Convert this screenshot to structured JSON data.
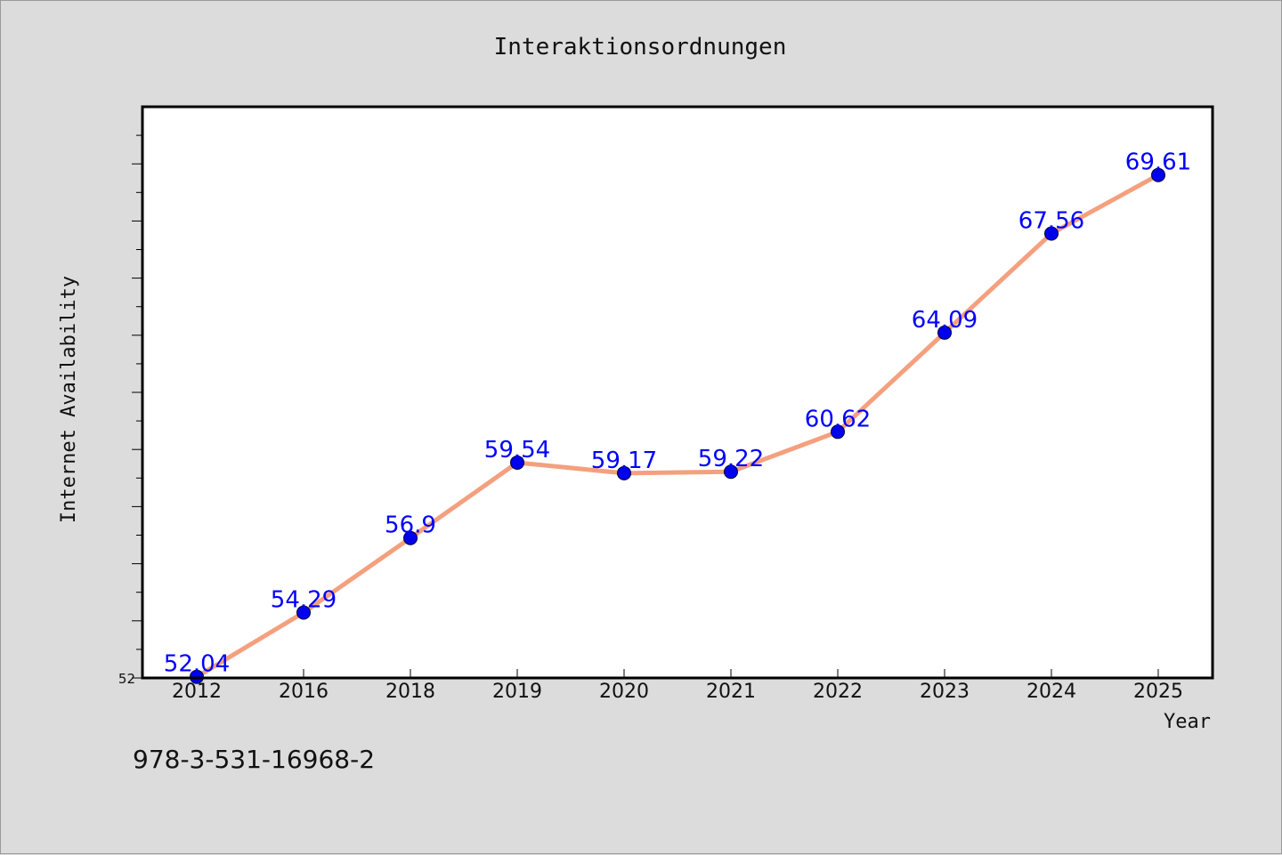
{
  "chart_data": {
    "type": "line",
    "title": "Interaktionsordnungen",
    "xlabel": "Year",
    "ylabel": "Internet Availability",
    "categories": [
      "2012",
      "2016",
      "2018",
      "2019",
      "2020",
      "2021",
      "2022",
      "2023",
      "2024",
      "2025"
    ],
    "series": [
      {
        "values": [
          52.04,
          54.29,
          56.9,
          59.54,
          59.17,
          59.22,
          60.62,
          64.09,
          67.56,
          69.61
        ],
        "labels": [
          "52.04",
          "54.29",
          "56.9",
          "59.54",
          "59.17",
          "59.22",
          "60.62",
          "64.09",
          "67.56",
          "69.61"
        ]
      }
    ],
    "ylim": [
      52,
      72
    ],
    "y_tick_labels": [
      "52"
    ],
    "grid": false,
    "line_color": "#f4a07e",
    "marker_color": "#0000ee",
    "label_color": "#0000ff",
    "footer_code": "978-3-531-16968-2"
  }
}
